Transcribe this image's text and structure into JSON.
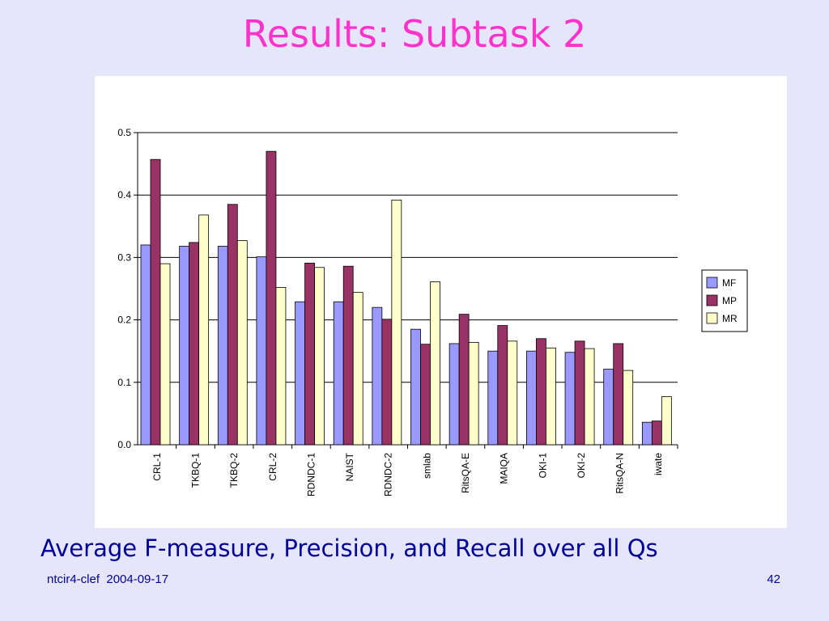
{
  "slide": {
    "title": "Results: Subtask 2",
    "caption": "Average F-measure, Precision, and Recall over all Qs",
    "footer_left": "ntcir4-clef  2004-09-17",
    "page_number": "42"
  },
  "colors": {
    "background": "#e6e6fa",
    "title": "#ff33cc",
    "caption": "#000099",
    "MF": "#9999ff",
    "MP": "#993366",
    "MR": "#ffffcc"
  },
  "chart_data": {
    "type": "bar",
    "categories": [
      "CRL-1",
      "TKBQ-1",
      "TKBQ-2",
      "CRL-2",
      "RDNDC-1",
      "NAIST",
      "RDNDC-2",
      "smlab",
      "RitsQA-E",
      "MAIQA",
      "OKI-1",
      "OKI-2",
      "RitsQA-N",
      "iwate"
    ],
    "series": [
      {
        "name": "MF",
        "values": [
          0.32,
          0.318,
          0.318,
          0.301,
          0.229,
          0.229,
          0.22,
          0.185,
          0.162,
          0.15,
          0.15,
          0.148,
          0.121,
          0.036
        ]
      },
      {
        "name": "MP",
        "values": [
          0.457,
          0.324,
          0.385,
          0.47,
          0.291,
          0.286,
          0.201,
          0.161,
          0.209,
          0.191,
          0.17,
          0.166,
          0.162,
          0.038
        ]
      },
      {
        "name": "MR",
        "values": [
          0.29,
          0.368,
          0.327,
          0.252,
          0.284,
          0.244,
          0.392,
          0.261,
          0.164,
          0.166,
          0.155,
          0.154,
          0.119,
          0.077
        ]
      }
    ],
    "y_ticks": [
      "0.0",
      "0.1",
      "0.2",
      "0.3",
      "0.4",
      "0.5"
    ],
    "ylim": [
      0,
      0.5
    ],
    "grid": true,
    "legend_position": "right"
  }
}
